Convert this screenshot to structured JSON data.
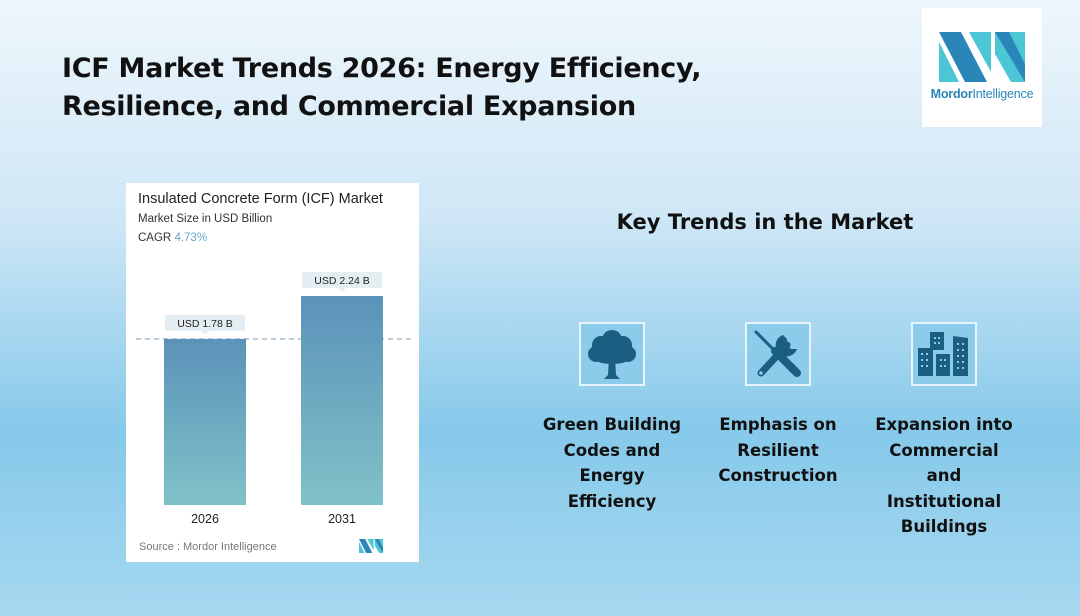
{
  "header": {
    "title_line1": "ICF Market Trends 2026: Energy Efficiency,",
    "title_line2": "Resilience, and Commercial Expansion"
  },
  "logo": {
    "brand_bold": "Mordor",
    "brand_light": "Intelligence",
    "colors": {
      "dark": "#2a86b8",
      "light": "#4cc6d4"
    }
  },
  "chart_card": {
    "title": "Insulated Concrete Form (ICF) Market",
    "subtitle": "Market Size in USD Billion",
    "cagr_label": "CAGR",
    "cagr_value": "4.73%",
    "source": "Source :  Mordor Intelligence"
  },
  "chart_data": {
    "type": "bar",
    "title": "Insulated Concrete Form (ICF) Market",
    "subtitle": "Market Size in USD Billion",
    "categories": [
      "2026",
      "2031"
    ],
    "values": [
      1.78,
      2.24
    ],
    "data_labels": [
      "USD 1.78 B",
      "USD 2.24 B"
    ],
    "unit": "USD Billion",
    "cagr": "4.73%",
    "reference_line": 1.78,
    "xlabel": "",
    "ylabel": "",
    "ylim": [
      0,
      2.24
    ],
    "grid": false,
    "bar_gradient": {
      "top": "#5b92b9",
      "bottom": "#80c2c8"
    }
  },
  "trends": {
    "title": "Key Trends in the Market",
    "items": [
      {
        "icon": "tree-icon",
        "label": "Green Building Codes and Energy Efficiency",
        "lines": [
          "Green Building",
          "Codes and",
          "Energy",
          "Efficiency"
        ]
      },
      {
        "icon": "tools-icon",
        "label": "Emphasis on Resilient Construction",
        "lines": [
          "Emphasis on",
          "Resilient",
          "Construction"
        ]
      },
      {
        "icon": "buildings-icon",
        "label": "Expansion into Commercial and Institutional Buildings",
        "lines": [
          "Expansion into",
          "Commercial",
          "and",
          "Institutional",
          "Buildings"
        ]
      }
    ],
    "icon_color": "#1a5f82"
  }
}
